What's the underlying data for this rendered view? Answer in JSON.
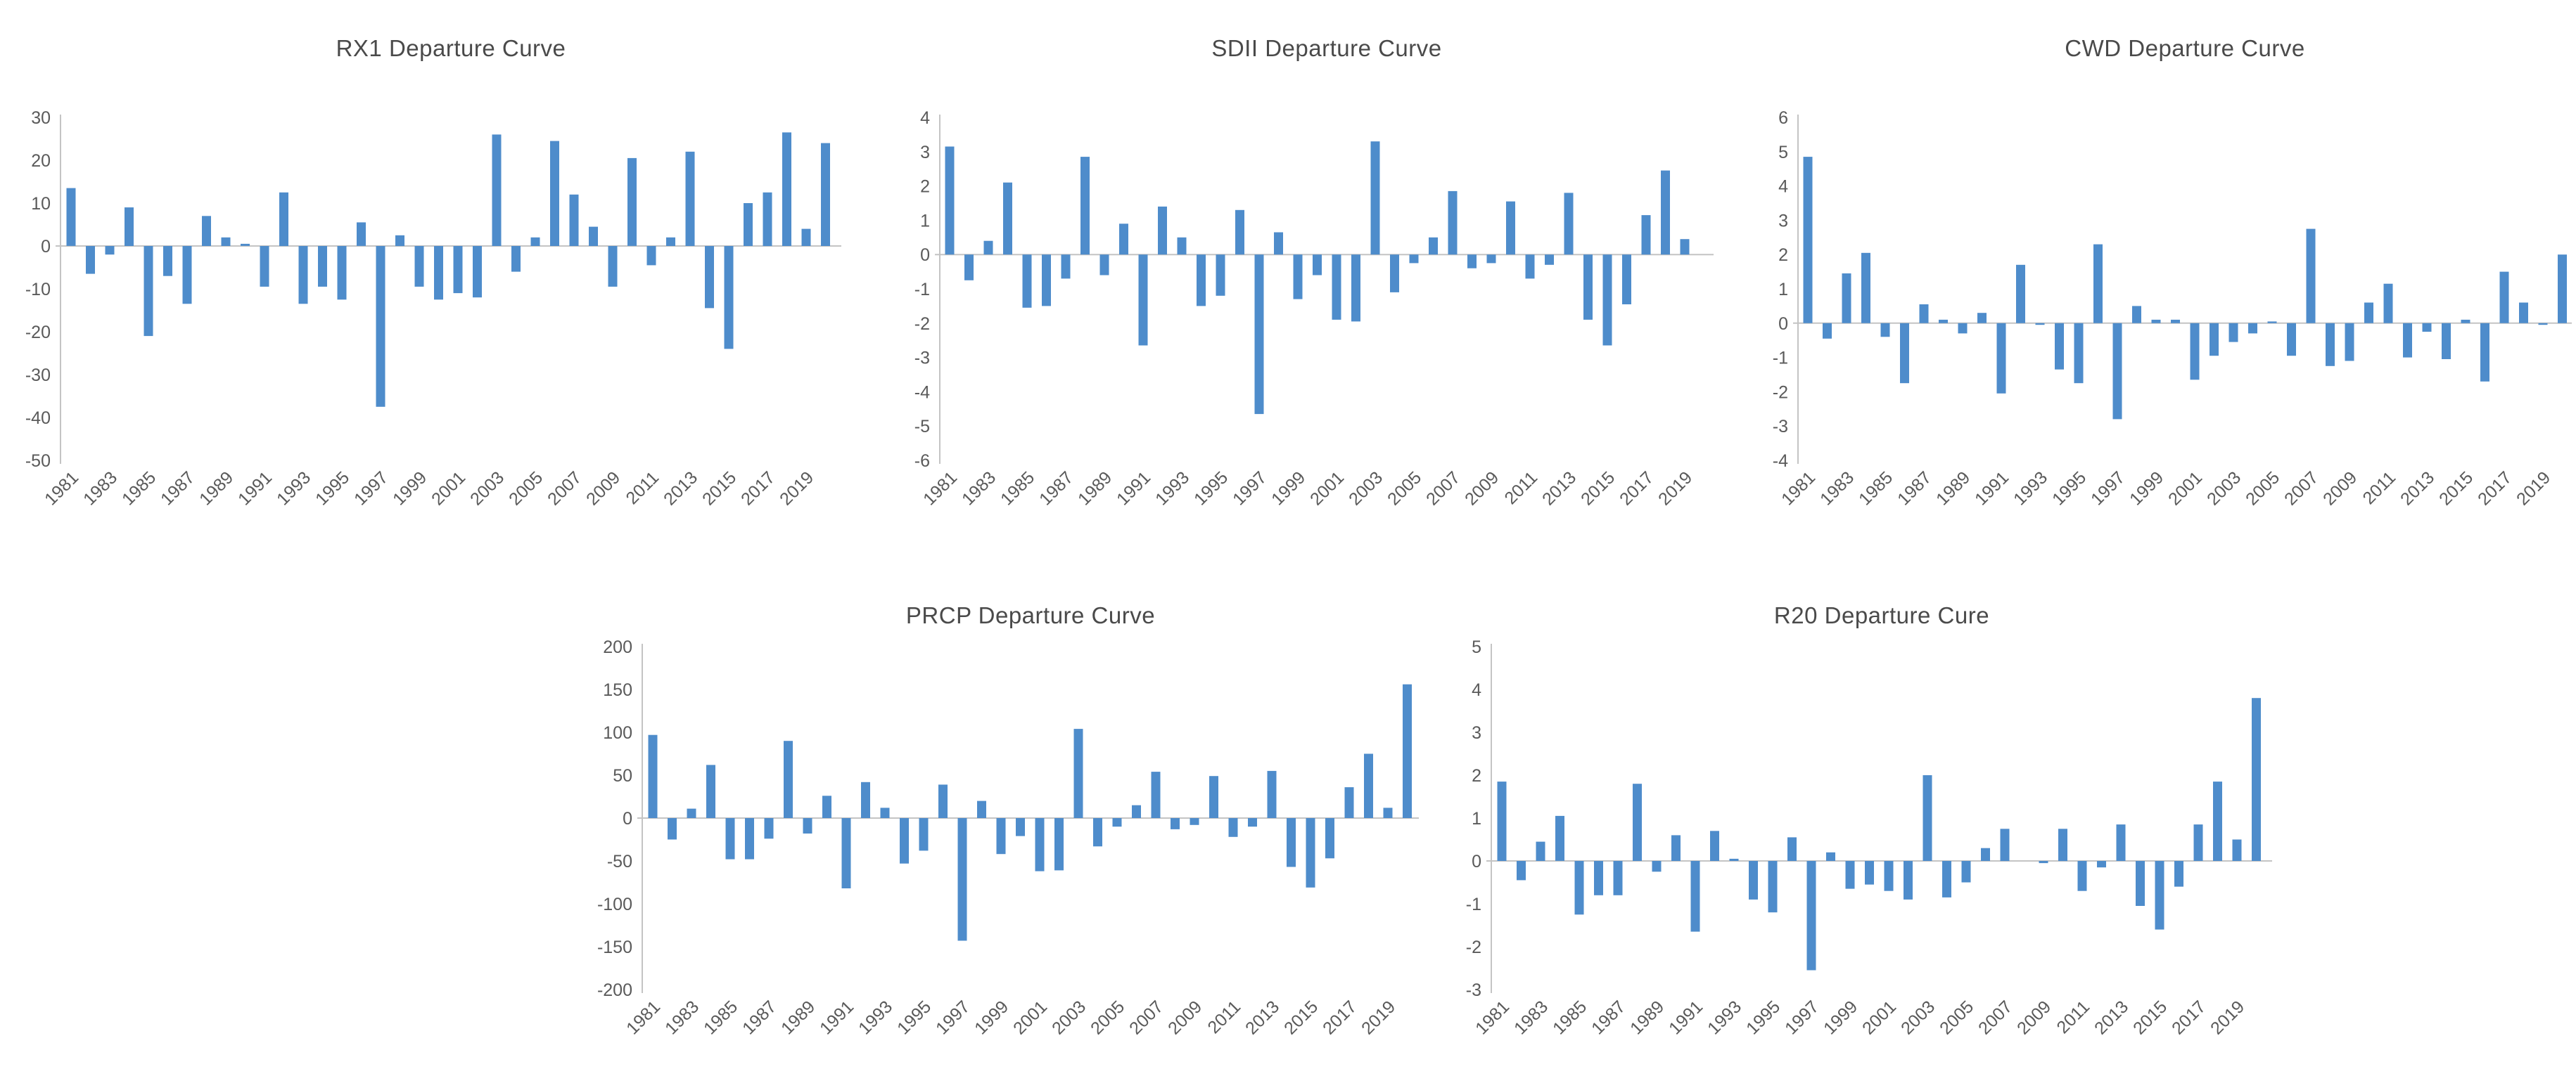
{
  "theme": {
    "background": "#ffffff",
    "bar_color": "#4E8CCB",
    "axis_color": "#C4C4C4",
    "tick_label_color": "#5A5A5A",
    "title_color": "#4A4A4A"
  },
  "chart_data": [
    {
      "id": "rx1",
      "type": "bar",
      "title": "RX1 Departure Curve",
      "xlabel": "",
      "ylabel": "",
      "ylim": [
        -50,
        30
      ],
      "yticks": [
        30,
        20,
        10,
        0,
        -10,
        -20,
        -30,
        -40,
        -50
      ],
      "grid": false,
      "legend": "none",
      "xtick_labels_shown": [
        "1981",
        "1983",
        "1985",
        "1987",
        "1989",
        "1991",
        "1993",
        "1995",
        "1997",
        "1999",
        "2001",
        "2003",
        "2005",
        "2007",
        "2009",
        "2011",
        "2013",
        "2015",
        "2017",
        "2019"
      ],
      "categories": [
        1981,
        1982,
        1983,
        1984,
        1985,
        1986,
        1987,
        1988,
        1989,
        1990,
        1991,
        1992,
        1993,
        1994,
        1995,
        1996,
        1997,
        1998,
        1999,
        2000,
        2001,
        2002,
        2003,
        2004,
        2005,
        2006,
        2007,
        2008,
        2009,
        2010,
        2011,
        2012,
        2013,
        2014,
        2015,
        2016,
        2017,
        2018,
        2019,
        2020
      ],
      "values": [
        13.5,
        -6.5,
        -2,
        9,
        -21,
        -7,
        -13.5,
        7,
        2,
        0.5,
        -9.5,
        12.5,
        -13.5,
        -9.5,
        -12.5,
        5.5,
        -37.5,
        2.5,
        -9.5,
        -12.5,
        -11,
        -12,
        26,
        -6,
        2,
        24.5,
        12,
        4.5,
        -9.5,
        20.5,
        -4.5,
        2,
        22,
        -14.5,
        -24,
        10,
        12.5,
        26.5,
        4,
        24
      ]
    },
    {
      "id": "sdii",
      "type": "bar",
      "title": "SDII Departure Curve",
      "xlabel": "",
      "ylabel": "",
      "ylim": [
        -6,
        4
      ],
      "yticks": [
        4,
        3,
        2,
        1,
        0,
        -1,
        -2,
        -3,
        -4,
        -5,
        -6
      ],
      "grid": false,
      "legend": "none",
      "xtick_labels_shown": [
        "1981",
        "1983",
        "1985",
        "1987",
        "1989",
        "1991",
        "1993",
        "1995",
        "1997",
        "1999",
        "2001",
        "2003",
        "2005",
        "2007",
        "2009",
        "2011",
        "2013",
        "2015",
        "2017",
        "2019"
      ],
      "categories": [
        1981,
        1982,
        1983,
        1984,
        1985,
        1986,
        1987,
        1988,
        1989,
        1990,
        1991,
        1992,
        1993,
        1994,
        1995,
        1996,
        1997,
        1998,
        1999,
        2000,
        2001,
        2002,
        2003,
        2004,
        2005,
        2006,
        2007,
        2008,
        2009,
        2010,
        2011,
        2012,
        2013,
        2014,
        2015,
        2016,
        2017,
        2018,
        2019,
        2020
      ],
      "values": [
        3.15,
        -0.75,
        0.4,
        2.1,
        -1.55,
        -1.5,
        -0.7,
        2.85,
        -0.6,
        0.9,
        -2.65,
        1.4,
        0.5,
        -1.5,
        -1.2,
        1.3,
        -4.65,
        0.65,
        -1.3,
        -0.6,
        -1.9,
        -1.95,
        3.3,
        -1.1,
        -0.25,
        0.5,
        1.85,
        -0.4,
        -0.25,
        1.55,
        -0.7,
        -0.3,
        1.8,
        -1.9,
        -2.65,
        -1.45,
        1.15,
        2.45,
        0.45,
        0
      ]
    },
    {
      "id": "cwd",
      "type": "bar",
      "title": "CWD Departure Curve",
      "xlabel": "",
      "ylabel": "",
      "ylim": [
        -4,
        6
      ],
      "yticks": [
        6,
        5,
        4,
        3,
        2,
        1,
        0,
        -1,
        -2,
        -3,
        -4
      ],
      "grid": false,
      "legend": "none",
      "xtick_labels_shown": [
        "1981",
        "1983",
        "1985",
        "1987",
        "1989",
        "1991",
        "1993",
        "1995",
        "1997",
        "1999",
        "2001",
        "2003",
        "2005",
        "2007",
        "2009",
        "2011",
        "2013",
        "2015",
        "2017",
        "2019"
      ],
      "categories": [
        1981,
        1982,
        1983,
        1984,
        1985,
        1986,
        1987,
        1988,
        1989,
        1990,
        1991,
        1992,
        1993,
        1994,
        1995,
        1996,
        1997,
        1998,
        1999,
        2000,
        2001,
        2002,
        2003,
        2004,
        2005,
        2006,
        2007,
        2008,
        2009,
        2010,
        2011,
        2012,
        2013,
        2014,
        2015,
        2016,
        2017,
        2018,
        2019,
        2020
      ],
      "values": [
        4.85,
        -0.45,
        1.45,
        2.05,
        -0.4,
        -1.75,
        0.55,
        0.1,
        -0.3,
        0.3,
        -2.05,
        1.7,
        -0.05,
        -1.35,
        -1.75,
        2.3,
        -2.8,
        0.5,
        0.1,
        0.1,
        -1.65,
        -0.95,
        -0.55,
        -0.3,
        0.05,
        -0.95,
        2.75,
        -1.25,
        -1.1,
        0.6,
        1.15,
        -1,
        -0.25,
        -1.05,
        0.1,
        -1.7,
        1.5,
        0.6,
        -0.05,
        2
      ]
    },
    {
      "id": "prcp",
      "type": "bar",
      "title": "PRCP Departure Curve",
      "xlabel": "",
      "ylabel": "",
      "ylim": [
        -200,
        200
      ],
      "yticks": [
        200,
        150,
        100,
        50,
        0,
        -50,
        -100,
        -150,
        -200
      ],
      "grid": false,
      "legend": "none",
      "xtick_labels_shown": [
        "1981",
        "1983",
        "1985",
        "1987",
        "1989",
        "1991",
        "1993",
        "1995",
        "1997",
        "1999",
        "2001",
        "2003",
        "2005",
        "2007",
        "2009",
        "2011",
        "2013",
        "2015",
        "2017",
        "2019"
      ],
      "categories": [
        1981,
        1982,
        1983,
        1984,
        1985,
        1986,
        1987,
        1988,
        1989,
        1990,
        1991,
        1992,
        1993,
        1994,
        1995,
        1996,
        1997,
        1998,
        1999,
        2000,
        2001,
        2002,
        2003,
        2004,
        2005,
        2006,
        2007,
        2008,
        2009,
        2010,
        2011,
        2012,
        2013,
        2014,
        2015,
        2016,
        2017,
        2018,
        2019,
        2020
      ],
      "values": [
        97,
        -25,
        11,
        62,
        -48,
        -48,
        -24,
        90,
        -18,
        26,
        -82,
        42,
        12,
        -53,
        -38,
        39,
        -143,
        20,
        -42,
        -21,
        -62,
        -61,
        104,
        -33,
        -10,
        15,
        54,
        -13,
        -8,
        49,
        -22,
        -10,
        55,
        -57,
        -81,
        -47,
        36,
        75,
        12,
        156
      ]
    },
    {
      "id": "r20",
      "type": "bar",
      "title": "R20 Departure Cure",
      "xlabel": "",
      "ylabel": "",
      "ylim": [
        -3,
        5
      ],
      "yticks": [
        5,
        4,
        3,
        2,
        1,
        0,
        -1,
        -2,
        -3
      ],
      "grid": false,
      "legend": "none",
      "xtick_labels_shown": [
        "1981",
        "1983",
        "1985",
        "1987",
        "1989",
        "1991",
        "1993",
        "1995",
        "1997",
        "1999",
        "2001",
        "2003",
        "2005",
        "2007",
        "2009",
        "2011",
        "2013",
        "2015",
        "2017",
        "2019"
      ],
      "categories": [
        1981,
        1982,
        1983,
        1984,
        1985,
        1986,
        1987,
        1988,
        1989,
        1990,
        1991,
        1992,
        1993,
        1994,
        1995,
        1996,
        1997,
        1998,
        1999,
        2000,
        2001,
        2002,
        2003,
        2004,
        2005,
        2006,
        2007,
        2008,
        2009,
        2010,
        2011,
        2012,
        2013,
        2014,
        2015,
        2016,
        2017,
        2018,
        2019,
        2020
      ],
      "values": [
        1.85,
        -0.45,
        0.45,
        1.05,
        -1.25,
        -0.8,
        -0.8,
        1.8,
        -0.25,
        0.6,
        -1.65,
        0.7,
        0.05,
        -0.9,
        -1.2,
        0.55,
        -2.55,
        0.2,
        -0.65,
        -0.55,
        -0.7,
        -0.9,
        2,
        -0.85,
        -0.5,
        0.3,
        0.75,
        0,
        -0.05,
        0.75,
        -0.7,
        -0.15,
        0.85,
        -1.05,
        -1.6,
        -0.6,
        0.85,
        1.85,
        0.5,
        3.8
      ]
    }
  ]
}
